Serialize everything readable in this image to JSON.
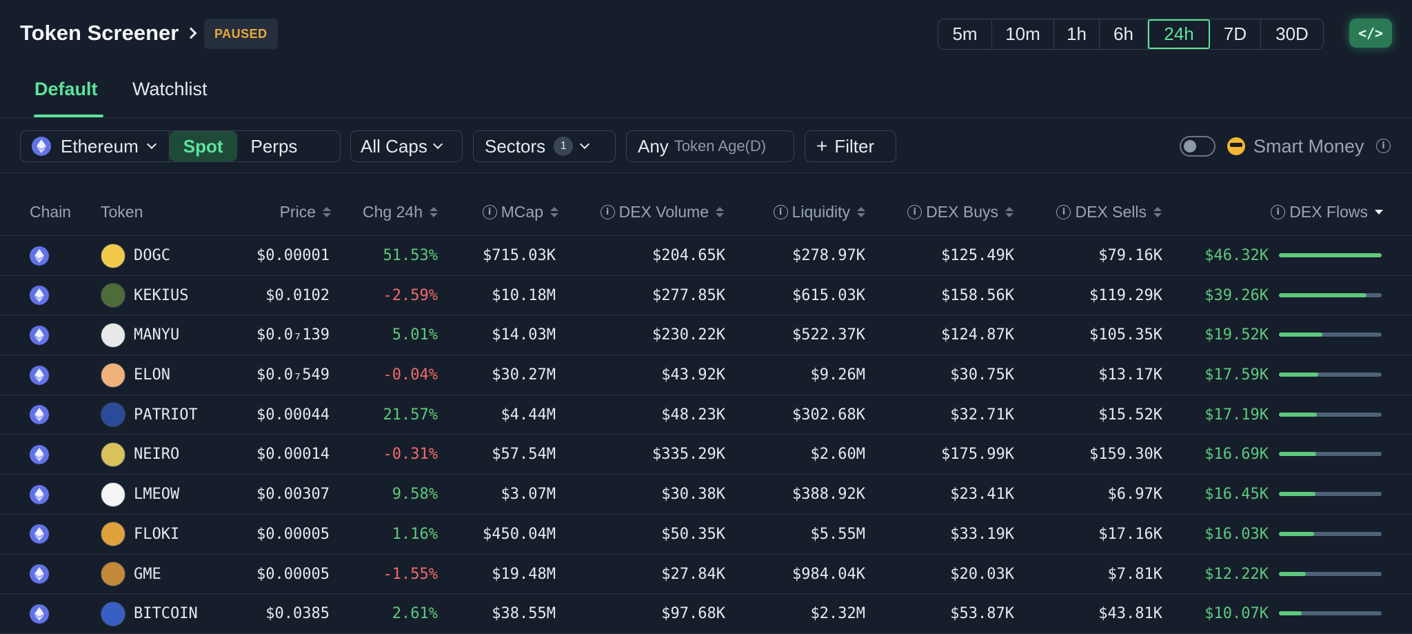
{
  "header": {
    "title": "Token Screener",
    "status": "PAUSED",
    "time_ranges": [
      "5m",
      "10m",
      "1h",
      "6h",
      "24h",
      "7D",
      "30D"
    ],
    "active_range": "24h",
    "embed_icon": "code-icon"
  },
  "tabs": [
    {
      "label": "Default",
      "active": true
    },
    {
      "label": "Watchlist",
      "active": false
    }
  ],
  "filters": {
    "chain": "Ethereum",
    "market_spot": "Spot",
    "market_perps": "Perps",
    "caps": "All Caps",
    "sectors": "Sectors",
    "sectors_count": "1",
    "age_value": "Any",
    "age_label": "Token Age(D)",
    "add_filter": "Filter",
    "smart_money": "Smart Money"
  },
  "columns": {
    "chain": "Chain",
    "token": "Token",
    "price": "Price",
    "chg": "Chg 24h",
    "mcap": "MCap",
    "dex_volume": "DEX Volume",
    "liquidity": "Liquidity",
    "dex_buys": "DEX Buys",
    "dex_sells": "DEX Sells",
    "dex_flows": "DEX Flows"
  },
  "colors": {
    "accent": "#5ee39a",
    "positive": "#5ec97e",
    "negative": "#ef6b6b",
    "background": "#161e2b"
  },
  "rows": [
    {
      "token": "DOGC",
      "price": "$0.00001",
      "chg": "51.53%",
      "dir": "pos",
      "mcap": "$715.03K",
      "vol": "$204.65K",
      "liq": "$278.97K",
      "buys": "$125.49K",
      "sells": "$79.16K",
      "flows": "$46.32K",
      "flow_share": 1.0,
      "logo": "#f2c94c"
    },
    {
      "token": "KEKIUS",
      "price": "$0.0102",
      "chg": "-2.59%",
      "dir": "neg",
      "mcap": "$10.18M",
      "vol": "$277.85K",
      "liq": "$615.03K",
      "buys": "$158.56K",
      "sells": "$119.29K",
      "flows": "$39.26K",
      "flow_share": 0.85,
      "logo": "#4f6b3a"
    },
    {
      "token": "MANYU",
      "price": "$0.0₇139",
      "chg": "5.01%",
      "dir": "pos",
      "mcap": "$14.03M",
      "vol": "$230.22K",
      "liq": "$522.37K",
      "buys": "$124.87K",
      "sells": "$105.35K",
      "flows": "$19.52K",
      "flow_share": 0.42,
      "logo": "#e8e8e8"
    },
    {
      "token": "ELON",
      "price": "$0.0₇549",
      "chg": "-0.04%",
      "dir": "neg",
      "mcap": "$30.27M",
      "vol": "$43.92K",
      "liq": "$9.26M",
      "buys": "$30.75K",
      "sells": "$13.17K",
      "flows": "$17.59K",
      "flow_share": 0.38,
      "logo": "#f0b27a"
    },
    {
      "token": "PATRIOT",
      "price": "$0.00044",
      "chg": "21.57%",
      "dir": "pos",
      "mcap": "$4.44M",
      "vol": "$48.23K",
      "liq": "$302.68K",
      "buys": "$32.71K",
      "sells": "$15.52K",
      "flows": "$17.19K",
      "flow_share": 0.37,
      "logo": "#2c4a9a"
    },
    {
      "token": "NEIRO",
      "price": "$0.00014",
      "chg": "-0.31%",
      "dir": "neg",
      "mcap": "$57.54M",
      "vol": "$335.29K",
      "liq": "$2.60M",
      "buys": "$175.99K",
      "sells": "$159.30K",
      "flows": "$16.69K",
      "flow_share": 0.36,
      "logo": "#d9c25a"
    },
    {
      "token": "LMEOW",
      "price": "$0.00307",
      "chg": "9.58%",
      "dir": "pos",
      "mcap": "$3.07M",
      "vol": "$30.38K",
      "liq": "$388.92K",
      "buys": "$23.41K",
      "sells": "$6.97K",
      "flows": "$16.45K",
      "flow_share": 0.355,
      "logo": "#f4f4f4"
    },
    {
      "token": "FLOKI",
      "price": "$0.00005",
      "chg": "1.16%",
      "dir": "pos",
      "mcap": "$450.04M",
      "vol": "$50.35K",
      "liq": "$5.55M",
      "buys": "$33.19K",
      "sells": "$17.16K",
      "flows": "$16.03K",
      "flow_share": 0.345,
      "logo": "#e0a23c"
    },
    {
      "token": "GME",
      "price": "$0.00005",
      "chg": "-1.55%",
      "dir": "neg",
      "mcap": "$19.48M",
      "vol": "$27.84K",
      "liq": "$984.04K",
      "buys": "$20.03K",
      "sells": "$7.81K",
      "flows": "$12.22K",
      "flow_share": 0.26,
      "logo": "#c48a3a"
    },
    {
      "token": "BITCOIN",
      "price": "$0.0385",
      "chg": "2.61%",
      "dir": "pos",
      "mcap": "$38.55M",
      "vol": "$97.68K",
      "liq": "$2.32M",
      "buys": "$53.87K",
      "sells": "$43.81K",
      "flows": "$10.07K",
      "flow_share": 0.22,
      "logo": "#3a5fc4"
    }
  ]
}
